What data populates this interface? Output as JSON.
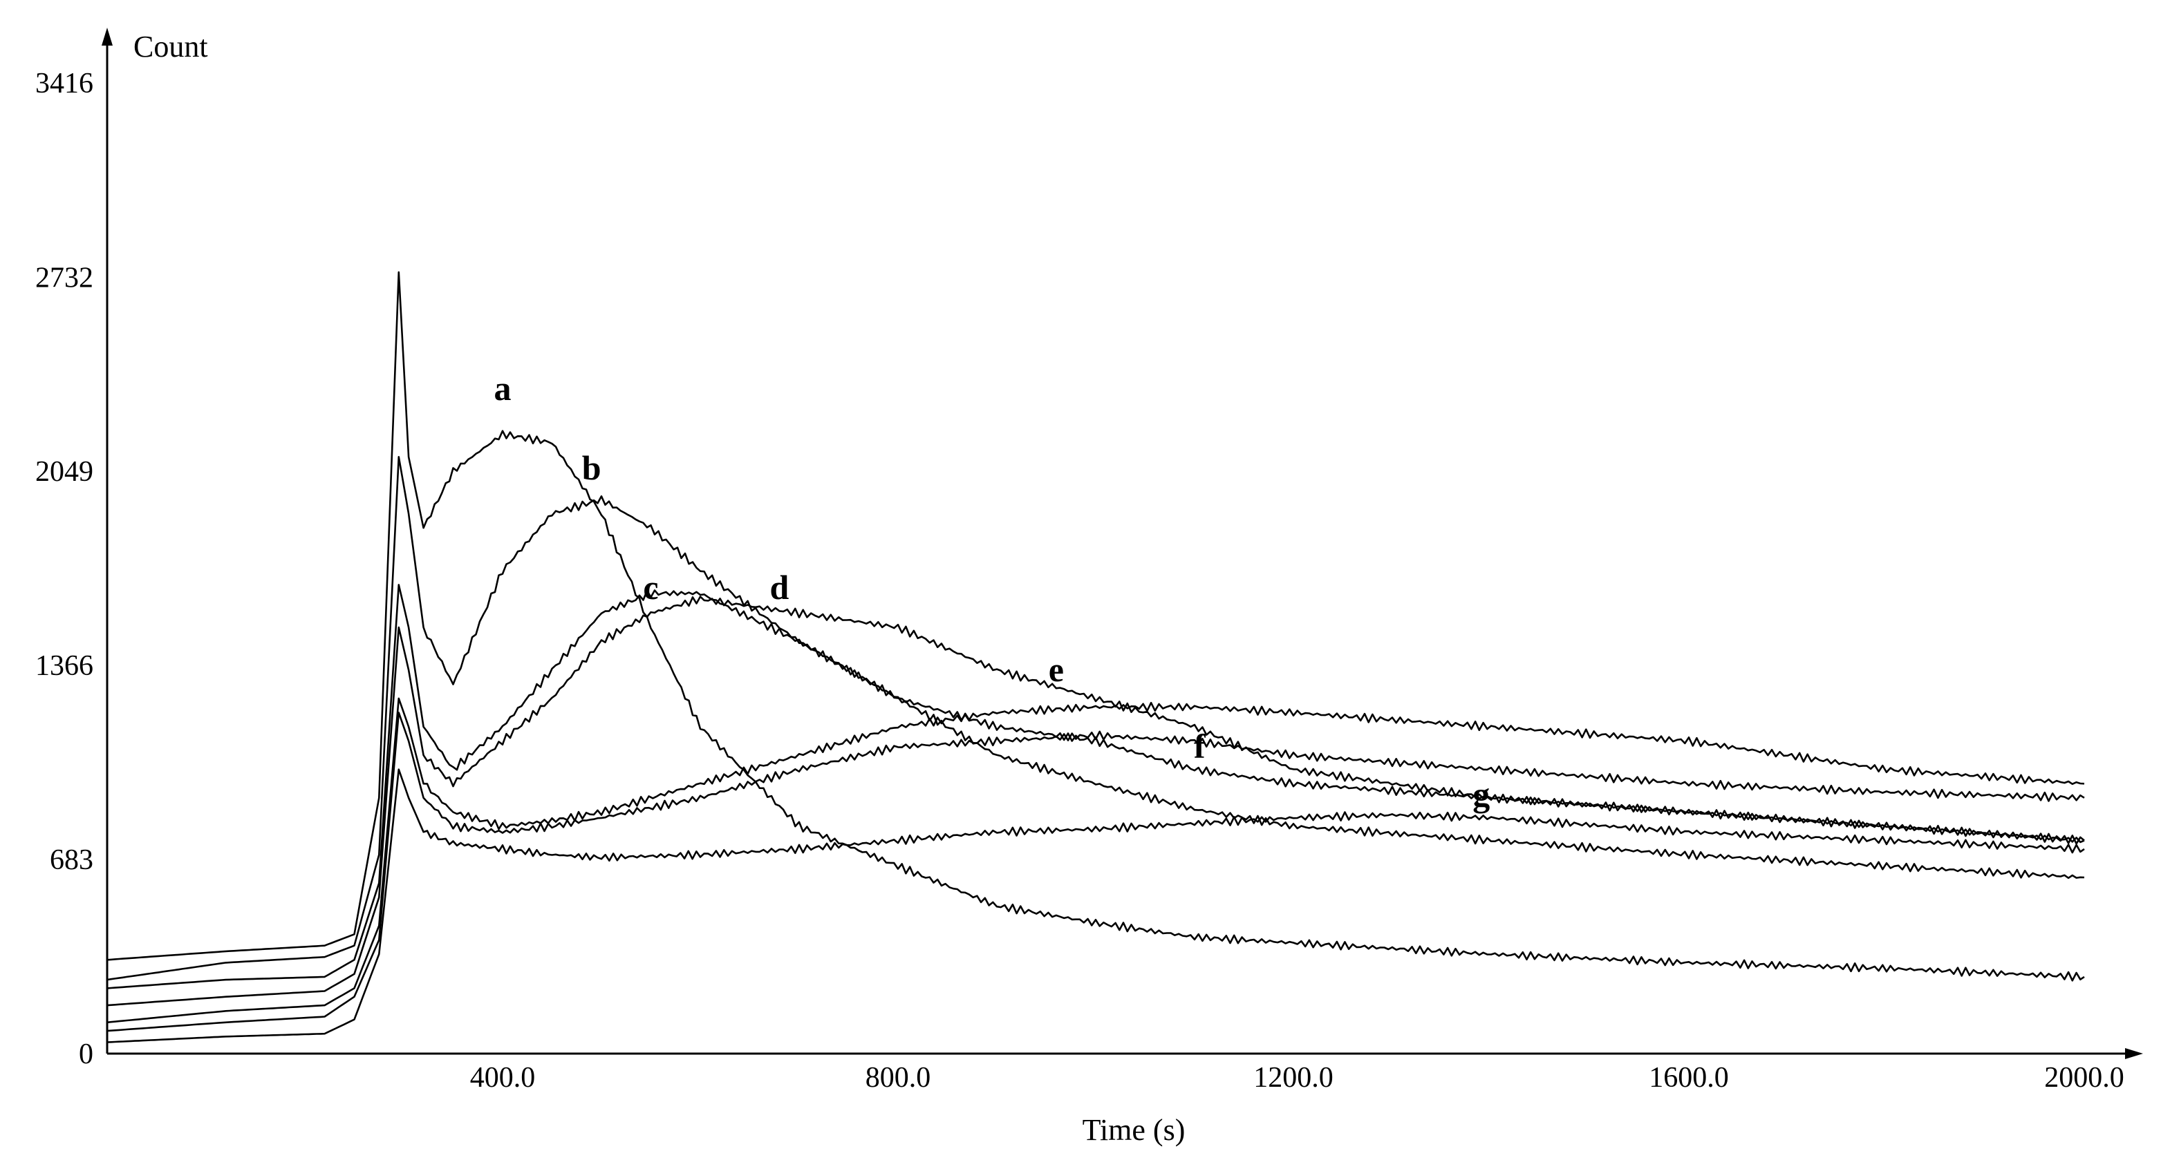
{
  "chart_data": {
    "type": "line",
    "title": "",
    "xlabel": "Time (s)",
    "ylabel": "Count",
    "xlim": [
      0,
      2000
    ],
    "ylim": [
      0,
      3416
    ],
    "x_ticks": [
      400,
      800,
      1200,
      1600,
      2000
    ],
    "x_tick_labels": [
      "400.0",
      "800.0",
      "1200.0",
      "1600.0",
      "2000.0"
    ],
    "y_ticks": [
      0,
      683,
      1366,
      2049,
      2732,
      3416
    ],
    "y_tick_labels": [
      "0",
      "683",
      "1366",
      "2049",
      "2732",
      "3416"
    ],
    "grid": false,
    "series": [
      {
        "name": "a",
        "label_at": [
          400,
          2300
        ],
        "points": [
          [
            0,
            330
          ],
          [
            120,
            360
          ],
          [
            220,
            380
          ],
          [
            250,
            420
          ],
          [
            275,
            900
          ],
          [
            295,
            2750
          ],
          [
            305,
            2100
          ],
          [
            320,
            1850
          ],
          [
            350,
            2050
          ],
          [
            400,
            2180
          ],
          [
            450,
            2150
          ],
          [
            500,
            1900
          ],
          [
            550,
            1500
          ],
          [
            600,
            1150
          ],
          [
            700,
            800
          ],
          [
            800,
            660
          ],
          [
            900,
            520
          ],
          [
            1000,
            460
          ],
          [
            1100,
            410
          ],
          [
            1200,
            390
          ],
          [
            1400,
            350
          ],
          [
            1600,
            320
          ],
          [
            1800,
            300
          ],
          [
            2000,
            270
          ]
        ]
      },
      {
        "name": "b",
        "label_at": [
          490,
          2020
        ],
        "points": [
          [
            0,
            260
          ],
          [
            120,
            320
          ],
          [
            220,
            340
          ],
          [
            250,
            380
          ],
          [
            275,
            700
          ],
          [
            295,
            2100
          ],
          [
            305,
            1900
          ],
          [
            320,
            1500
          ],
          [
            350,
            1300
          ],
          [
            400,
            1700
          ],
          [
            450,
            1900
          ],
          [
            500,
            1950
          ],
          [
            550,
            1850
          ],
          [
            600,
            1700
          ],
          [
            700,
            1450
          ],
          [
            800,
            1250
          ],
          [
            900,
            1050
          ],
          [
            1000,
            950
          ],
          [
            1100,
            860
          ],
          [
            1200,
            800
          ],
          [
            1400,
            750
          ],
          [
            1600,
            700
          ],
          [
            1800,
            660
          ],
          [
            2000,
            620
          ]
        ]
      },
      {
        "name": "c",
        "label_at": [
          550,
          1600
        ],
        "points": [
          [
            0,
            230
          ],
          [
            120,
            260
          ],
          [
            220,
            270
          ],
          [
            250,
            330
          ],
          [
            275,
            600
          ],
          [
            295,
            1650
          ],
          [
            305,
            1500
          ],
          [
            320,
            1150
          ],
          [
            350,
            1000
          ],
          [
            400,
            1150
          ],
          [
            450,
            1350
          ],
          [
            500,
            1550
          ],
          [
            550,
            1620
          ],
          [
            600,
            1620
          ],
          [
            700,
            1450
          ],
          [
            800,
            1250
          ],
          [
            900,
            1150
          ],
          [
            1000,
            1100
          ],
          [
            1100,
            1000
          ],
          [
            1200,
            950
          ],
          [
            1400,
            900
          ],
          [
            1600,
            850
          ],
          [
            1800,
            800
          ],
          [
            2000,
            750
          ]
        ]
      },
      {
        "name": "d",
        "label_at": [
          680,
          1600
        ],
        "points": [
          [
            0,
            170
          ],
          [
            120,
            200
          ],
          [
            220,
            220
          ],
          [
            250,
            280
          ],
          [
            275,
            550
          ],
          [
            295,
            1500
          ],
          [
            305,
            1350
          ],
          [
            320,
            1050
          ],
          [
            350,
            950
          ],
          [
            400,
            1100
          ],
          [
            450,
            1250
          ],
          [
            500,
            1450
          ],
          [
            550,
            1550
          ],
          [
            600,
            1600
          ],
          [
            700,
            1550
          ],
          [
            800,
            1500
          ],
          [
            900,
            1350
          ],
          [
            1000,
            1250
          ],
          [
            1100,
            1150
          ],
          [
            1200,
            1000
          ],
          [
            1400,
            900
          ],
          [
            1600,
            850
          ],
          [
            1800,
            800
          ],
          [
            2000,
            750
          ]
        ]
      },
      {
        "name": "e",
        "label_at": [
          960,
          1310
        ],
        "points": [
          [
            0,
            110
          ],
          [
            120,
            150
          ],
          [
            220,
            170
          ],
          [
            250,
            230
          ],
          [
            275,
            450
          ],
          [
            295,
            1250
          ],
          [
            305,
            1150
          ],
          [
            320,
            950
          ],
          [
            350,
            850
          ],
          [
            400,
            800
          ],
          [
            450,
            820
          ],
          [
            500,
            850
          ],
          [
            600,
            950
          ],
          [
            700,
            1050
          ],
          [
            800,
            1150
          ],
          [
            900,
            1200
          ],
          [
            1000,
            1220
          ],
          [
            1100,
            1220
          ],
          [
            1200,
            1200
          ],
          [
            1400,
            1150
          ],
          [
            1600,
            1100
          ],
          [
            1800,
            1000
          ],
          [
            2000,
            950
          ]
        ]
      },
      {
        "name": "f",
        "label_at": [
          1105,
          1040
        ],
        "points": [
          [
            0,
            80
          ],
          [
            120,
            110
          ],
          [
            220,
            130
          ],
          [
            250,
            200
          ],
          [
            275,
            400
          ],
          [
            295,
            1200
          ],
          [
            305,
            1100
          ],
          [
            320,
            900
          ],
          [
            350,
            800
          ],
          [
            400,
            780
          ],
          [
            450,
            800
          ],
          [
            500,
            830
          ],
          [
            600,
            900
          ],
          [
            700,
            1000
          ],
          [
            800,
            1080
          ],
          [
            900,
            1100
          ],
          [
            1000,
            1120
          ],
          [
            1100,
            1100
          ],
          [
            1200,
            1050
          ],
          [
            1400,
            1000
          ],
          [
            1600,
            950
          ],
          [
            1800,
            920
          ],
          [
            2000,
            900
          ]
        ]
      },
      {
        "name": "g",
        "label_at": [
          1390,
          870
        ],
        "points": [
          [
            0,
            40
          ],
          [
            120,
            60
          ],
          [
            220,
            70
          ],
          [
            250,
            120
          ],
          [
            275,
            350
          ],
          [
            295,
            1000
          ],
          [
            305,
            900
          ],
          [
            320,
            780
          ],
          [
            350,
            740
          ],
          [
            400,
            720
          ],
          [
            450,
            700
          ],
          [
            500,
            690
          ],
          [
            600,
            700
          ],
          [
            700,
            720
          ],
          [
            800,
            750
          ],
          [
            900,
            780
          ],
          [
            1000,
            790
          ],
          [
            1100,
            810
          ],
          [
            1200,
            830
          ],
          [
            1300,
            840
          ],
          [
            1400,
            830
          ],
          [
            1600,
            780
          ],
          [
            1800,
            750
          ],
          [
            2000,
            720
          ]
        ]
      }
    ]
  }
}
